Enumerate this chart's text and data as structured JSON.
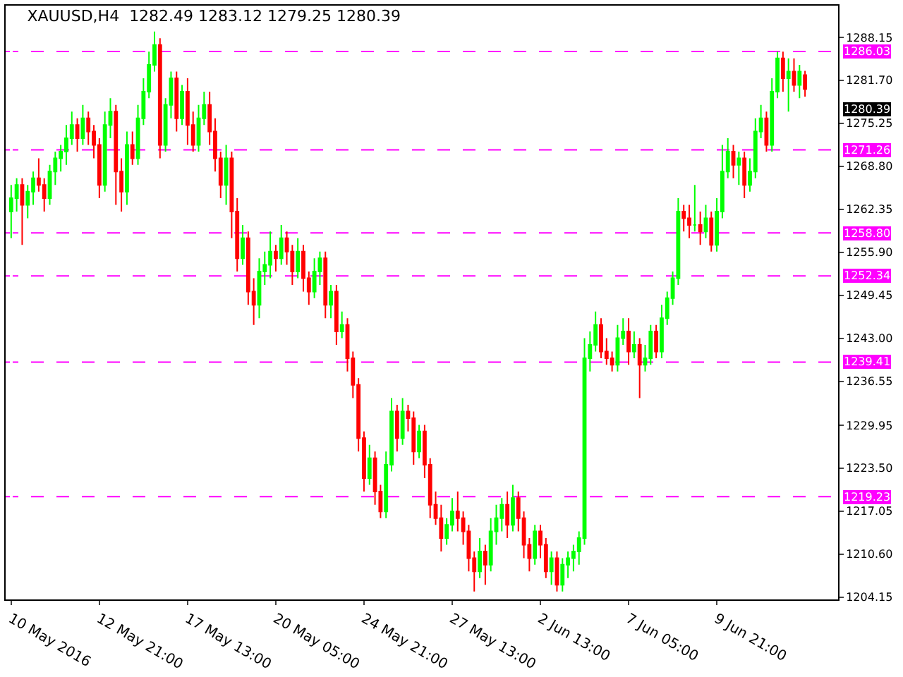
{
  "chart_data": {
    "type": "candlestick",
    "title": "XAUUSD,H4  1282.49 1283.12 1279.25 1280.39",
    "categories": [
      "10 May 2016",
      null,
      null,
      null,
      null,
      null,
      null,
      null,
      null,
      null,
      null,
      null,
      null,
      null,
      null,
      null,
      "12 May 21:00",
      null,
      null,
      null,
      null,
      null,
      null,
      null,
      null,
      null,
      null,
      null,
      null,
      null,
      null,
      null,
      "17 May 13:00",
      null,
      null,
      null,
      null,
      null,
      null,
      null,
      null,
      null,
      null,
      null,
      null,
      null,
      null,
      null,
      "20 May 05:00",
      null,
      null,
      null,
      null,
      null,
      null,
      null,
      null,
      null,
      null,
      null,
      null,
      null,
      null,
      null,
      "24 May 21:00",
      null,
      null,
      null,
      null,
      null,
      null,
      null,
      null,
      null,
      null,
      null,
      null,
      null,
      null,
      null,
      "27 May 13:00",
      null,
      null,
      null,
      null,
      null,
      null,
      null,
      null,
      null,
      null,
      null,
      null,
      null,
      null,
      null,
      "2 Jun 13:00",
      null,
      null,
      null,
      null,
      null,
      null,
      null,
      null,
      null,
      null,
      null,
      null,
      null,
      null,
      null,
      "7 Jun 05:00",
      null,
      null,
      null,
      null,
      null,
      null,
      null,
      null,
      null,
      null,
      null,
      null,
      null,
      null,
      null,
      "9 Jun 21:00",
      null,
      null,
      null,
      null,
      null,
      null,
      null,
      null,
      null,
      null,
      null,
      null,
      null,
      null,
      null,
      null
    ],
    "ohlc": [
      [
        1262,
        1266,
        1258,
        1264
      ],
      [
        1264,
        1267,
        1262,
        1266
      ],
      [
        1266,
        1267,
        1257,
        1263
      ],
      [
        1263,
        1266,
        1261,
        1265
      ],
      [
        1265,
        1268,
        1263,
        1267
      ],
      [
        1267,
        1270,
        1265,
        1266
      ],
      [
        1266,
        1267,
        1262,
        1264
      ],
      [
        1264,
        1269,
        1263,
        1268
      ],
      [
        1268,
        1271,
        1266,
        1270
      ],
      [
        1270,
        1272,
        1268,
        1271
      ],
      [
        1271,
        1275,
        1269,
        1273
      ],
      [
        1273,
        1277,
        1272,
        1275
      ],
      [
        1275,
        1276,
        1271,
        1273
      ],
      [
        1273,
        1278,
        1272,
        1276
      ],
      [
        1276,
        1277,
        1272,
        1274
      ],
      [
        1274,
        1275,
        1270,
        1272
      ],
      [
        1272,
        1273,
        1264,
        1266
      ],
      [
        1266,
        1277,
        1265,
        1275
      ],
      [
        1275,
        1279,
        1273,
        1277
      ],
      [
        1277,
        1278,
        1263,
        1268
      ],
      [
        1268,
        1270,
        1262,
        1265
      ],
      [
        1265,
        1274,
        1263,
        1272
      ],
      [
        1272,
        1274,
        1269,
        1270
      ],
      [
        1270,
        1278,
        1269,
        1276
      ],
      [
        1276,
        1282,
        1275,
        1280
      ],
      [
        1280,
        1286,
        1279,
        1284
      ],
      [
        1284,
        1289,
        1283,
        1287
      ],
      [
        1287,
        1288,
        1270,
        1272
      ],
      [
        1272,
        1279,
        1271,
        1278
      ],
      [
        1278,
        1283,
        1276,
        1282
      ],
      [
        1282,
        1283,
        1274,
        1276
      ],
      [
        1276,
        1281,
        1275,
        1280
      ],
      [
        1280,
        1282,
        1272,
        1275
      ],
      [
        1275,
        1277,
        1271,
        1272
      ],
      [
        1272,
        1278,
        1271,
        1276
      ],
      [
        1276,
        1280,
        1275,
        1278
      ],
      [
        1278,
        1280,
        1272,
        1274
      ],
      [
        1274,
        1276,
        1268,
        1270
      ],
      [
        1270,
        1271,
        1264,
        1266
      ],
      [
        1266,
        1272,
        1263,
        1270
      ],
      [
        1270,
        1271,
        1258,
        1262
      ],
      [
        1262,
        1264,
        1253,
        1255
      ],
      [
        1255,
        1260,
        1254,
        1258
      ],
      [
        1258,
        1259,
        1248,
        1250
      ],
      [
        1250,
        1252,
        1245,
        1248
      ],
      [
        1248,
        1255,
        1246,
        1253
      ],
      [
        1253,
        1256,
        1251,
        1254
      ],
      [
        1254,
        1259,
        1252,
        1256
      ],
      [
        1256,
        1257,
        1253,
        1255
      ],
      [
        1255,
        1260,
        1254,
        1258
      ],
      [
        1258,
        1259,
        1254,
        1256
      ],
      [
        1256,
        1257,
        1251,
        1253
      ],
      [
        1253,
        1258,
        1252,
        1256
      ],
      [
        1256,
        1257,
        1250,
        1252
      ],
      [
        1252,
        1253,
        1248,
        1250
      ],
      [
        1250,
        1255,
        1249,
        1253
      ],
      [
        1253,
        1256,
        1251,
        1255
      ],
      [
        1255,
        1256,
        1246,
        1248
      ],
      [
        1248,
        1251,
        1246,
        1250
      ],
      [
        1250,
        1251,
        1242,
        1244
      ],
      [
        1244,
        1247,
        1243,
        1245
      ],
      [
        1245,
        1246,
        1238,
        1240
      ],
      [
        1240,
        1241,
        1234,
        1236
      ],
      [
        1236,
        1237,
        1226,
        1228
      ],
      [
        1228,
        1229,
        1220,
        1222
      ],
      [
        1222,
        1227,
        1221,
        1225
      ],
      [
        1225,
        1226,
        1218,
        1220
      ],
      [
        1220,
        1221,
        1216,
        1217
      ],
      [
        1217,
        1226,
        1216,
        1224
      ],
      [
        1224,
        1234,
        1223,
        1232
      ],
      [
        1232,
        1233,
        1226,
        1228
      ],
      [
        1228,
        1234,
        1227,
        1232
      ],
      [
        1232,
        1233,
        1229,
        1231
      ],
      [
        1231,
        1232,
        1224,
        1226
      ],
      [
        1226,
        1230,
        1225,
        1229
      ],
      [
        1229,
        1230,
        1222,
        1224
      ],
      [
        1224,
        1225,
        1216,
        1218
      ],
      [
        1218,
        1220,
        1215,
        1216
      ],
      [
        1216,
        1218,
        1211,
        1213
      ],
      [
        1213,
        1216,
        1212,
        1215
      ],
      [
        1215,
        1219,
        1214,
        1217
      ],
      [
        1217,
        1220,
        1214,
        1216
      ],
      [
        1216,
        1217,
        1212,
        1214
      ],
      [
        1214,
        1215,
        1208,
        1210
      ],
      [
        1210,
        1211,
        1205,
        1208
      ],
      [
        1208,
        1213,
        1207,
        1211
      ],
      [
        1211,
        1212,
        1206,
        1209
      ],
      [
        1209,
        1216,
        1208,
        1214
      ],
      [
        1214,
        1218,
        1212,
        1216
      ],
      [
        1216,
        1219,
        1214,
        1218
      ],
      [
        1218,
        1220,
        1213,
        1215
      ],
      [
        1215,
        1221,
        1214,
        1219
      ],
      [
        1219,
        1220,
        1214,
        1216
      ],
      [
        1216,
        1217,
        1210,
        1212
      ],
      [
        1212,
        1213,
        1208,
        1210
      ],
      [
        1210,
        1215,
        1209,
        1214
      ],
      [
        1214,
        1215,
        1210,
        1212
      ],
      [
        1212,
        1213,
        1207,
        1208
      ],
      [
        1208,
        1211,
        1206,
        1210
      ],
      [
        1210,
        1211,
        1205,
        1206
      ],
      [
        1206,
        1210,
        1205,
        1209
      ],
      [
        1209,
        1211,
        1207,
        1210
      ],
      [
        1210,
        1212,
        1208,
        1211
      ],
      [
        1211,
        1214,
        1209,
        1213
      ],
      [
        1213,
        1243,
        1212,
        1240
      ],
      [
        1240,
        1244,
        1238,
        1242
      ],
      [
        1242,
        1247,
        1241,
        1245
      ],
      [
        1245,
        1246,
        1240,
        1241
      ],
      [
        1241,
        1243,
        1239,
        1240
      ],
      [
        1240,
        1241,
        1238,
        1239
      ],
      [
        1239,
        1245,
        1238,
        1243
      ],
      [
        1243,
        1246,
        1242,
        1244
      ],
      [
        1244,
        1246,
        1239,
        1241
      ],
      [
        1241,
        1244,
        1240,
        1242
      ],
      [
        1242,
        1243,
        1234,
        1239
      ],
      [
        1239,
        1242,
        1238,
        1240
      ],
      [
        1240,
        1245,
        1239,
        1244
      ],
      [
        1244,
        1245,
        1240,
        1241
      ],
      [
        1241,
        1248,
        1240,
        1246
      ],
      [
        1246,
        1250,
        1245,
        1249
      ],
      [
        1249,
        1253,
        1248,
        1252
      ],
      [
        1252,
        1264,
        1251,
        1262
      ],
      [
        1262,
        1263,
        1259,
        1261
      ],
      [
        1261,
        1263,
        1258,
        1260
      ],
      [
        1260,
        1266,
        1259,
        1260
      ],
      [
        1260,
        1262,
        1257,
        1259
      ],
      [
        1259,
        1263,
        1258,
        1261
      ],
      [
        1261,
        1262,
        1256,
        1257
      ],
      [
        1257,
        1264,
        1256,
        1262
      ],
      [
        1262,
        1272,
        1261,
        1268
      ],
      [
        1268,
        1273,
        1267,
        1271
      ],
      [
        1271,
        1272,
        1267,
        1269
      ],
      [
        1269,
        1271,
        1266,
        1270
      ],
      [
        1270,
        1271,
        1264,
        1266
      ],
      [
        1266,
        1270,
        1265,
        1268
      ],
      [
        1268,
        1276,
        1267,
        1274
      ],
      [
        1274,
        1278,
        1273,
        1276
      ],
      [
        1276,
        1277,
        1271,
        1272
      ],
      [
        1272,
        1282,
        1271,
        1280
      ],
      [
        1280,
        1286,
        1279,
        1285
      ],
      [
        1285,
        1286,
        1280,
        1282
      ],
      [
        1282,
        1285,
        1277,
        1283
      ],
      [
        1283,
        1285,
        1280,
        1281
      ],
      [
        1281,
        1284,
        1279,
        1283
      ],
      [
        1282.49,
        1283.12,
        1279.25,
        1280.39
      ]
    ],
    "colors": [
      "#00ff00",
      "#00ff00",
      "#ff0000",
      "#00ff00",
      "#00ff00",
      "#ff0000",
      "#ff0000",
      "#00ff00",
      "#00ff00",
      "#00ff00",
      "#00ff00",
      "#00ff00",
      "#ff0000",
      "#00ff00",
      "#ff0000",
      "#ff0000",
      "#ff0000",
      "#00ff00",
      "#00ff00",
      "#ff0000",
      "#ff0000",
      "#00ff00",
      "#ff0000",
      "#00ff00",
      "#00ff00",
      "#00ff00",
      "#00ff00",
      "#ff0000",
      "#00ff00",
      "#00ff00",
      "#ff0000",
      "#00ff00",
      "#ff0000",
      "#ff0000",
      "#00ff00",
      "#00ff00",
      "#ff0000",
      "#ff0000",
      "#ff0000",
      "#00ff00",
      "#ff0000",
      "#ff0000",
      "#00ff00",
      "#ff0000",
      "#ff0000",
      "#00ff00",
      "#00ff00",
      "#00ff00",
      "#ff0000",
      "#00ff00",
      "#ff0000",
      "#ff0000",
      "#00ff00",
      "#ff0000",
      "#ff0000",
      "#00ff00",
      "#00ff00",
      "#ff0000",
      "#00ff00",
      "#ff0000",
      "#00ff00",
      "#ff0000",
      "#ff0000",
      "#ff0000",
      "#ff0000",
      "#00ff00",
      "#ff0000",
      "#ff0000",
      "#00ff00",
      "#00ff00",
      "#ff0000",
      "#00ff00",
      "#ff0000",
      "#ff0000",
      "#00ff00",
      "#ff0000",
      "#ff0000",
      "#ff0000",
      "#ff0000",
      "#00ff00",
      "#00ff00",
      "#ff0000",
      "#ff0000",
      "#ff0000",
      "#ff0000",
      "#00ff00",
      "#ff0000",
      "#00ff00",
      "#00ff00",
      "#00ff00",
      "#ff0000",
      "#00ff00",
      "#ff0000",
      "#ff0000",
      "#ff0000",
      "#00ff00",
      "#ff0000",
      "#ff0000",
      "#00ff00",
      "#ff0000",
      "#00ff00",
      "#00ff00",
      "#00ff00",
      "#00ff00",
      "#00ff00",
      "#00ff00",
      "#00ff00",
      "#ff0000",
      "#ff0000",
      "#ff0000",
      "#00ff00",
      "#00ff00",
      "#ff0000",
      "#00ff00",
      "#ff0000",
      "#00ff00",
      "#00ff00",
      "#ff0000",
      "#00ff00",
      "#00ff00",
      "#00ff00",
      "#00ff00",
      "#ff0000",
      "#ff0000",
      "#00ff00",
      "#ff0000",
      "#00ff00",
      "#ff0000",
      "#00ff00",
      "#00ff00",
      "#00ff00",
      "#ff0000",
      "#00ff00",
      "#ff0000",
      "#00ff00",
      "#00ff00",
      "#00ff00",
      "#ff0000",
      "#00ff00",
      "#00ff00",
      "#ff0000",
      "#00ff00",
      "#ff0000",
      "#00ff00",
      "#ff0000"
    ],
    "ylim": [
      1203.8,
      1292.9
    ],
    "yticks": [
      1204.15,
      {
        "value": 1210.6,
        "label": "1210.60"
      },
      1217.05,
      {
        "value": 1223.5,
        "label": "1223.50"
      },
      1229.95,
      1236.55,
      {
        "value": 1243,
        "label": "1243.00"
      },
      1249.45,
      {
        "value": 1255.9,
        "label": "1255.90"
      },
      1262.35,
      {
        "value": 1268.8,
        "label": "1268.80"
      },
      1275.25,
      {
        "value": 1281.7,
        "label": "1281.70"
      },
      1288.15
    ],
    "ref_lines": [
      {
        "axis": "y",
        "value": 1286.03,
        "label": "1286.03",
        "color": "#ff00ff",
        "line_style": "dashed"
      },
      {
        "axis": "y",
        "value": 1271.26,
        "label": "1271.26",
        "color": "#ff00ff",
        "line_style": "dashed"
      },
      {
        "axis": "y",
        "value": 1258.8,
        "label": "1258.80",
        "color": "#ff00ff",
        "line_style": "dashed"
      },
      {
        "axis": "y",
        "value": 1252.34,
        "label": "1252.34",
        "color": "#ff00ff",
        "line_style": "dashed"
      },
      {
        "axis": "y",
        "value": 1239.41,
        "label": "1239.41",
        "color": "#ff00ff",
        "line_style": "dashed"
      },
      {
        "axis": "y",
        "value": 1219.23,
        "label": "1219.23",
        "color": "#ff00ff",
        "line_style": "dashed"
      }
    ],
    "annotations": [
      "1280.39"
    ],
    "grid": false
  }
}
